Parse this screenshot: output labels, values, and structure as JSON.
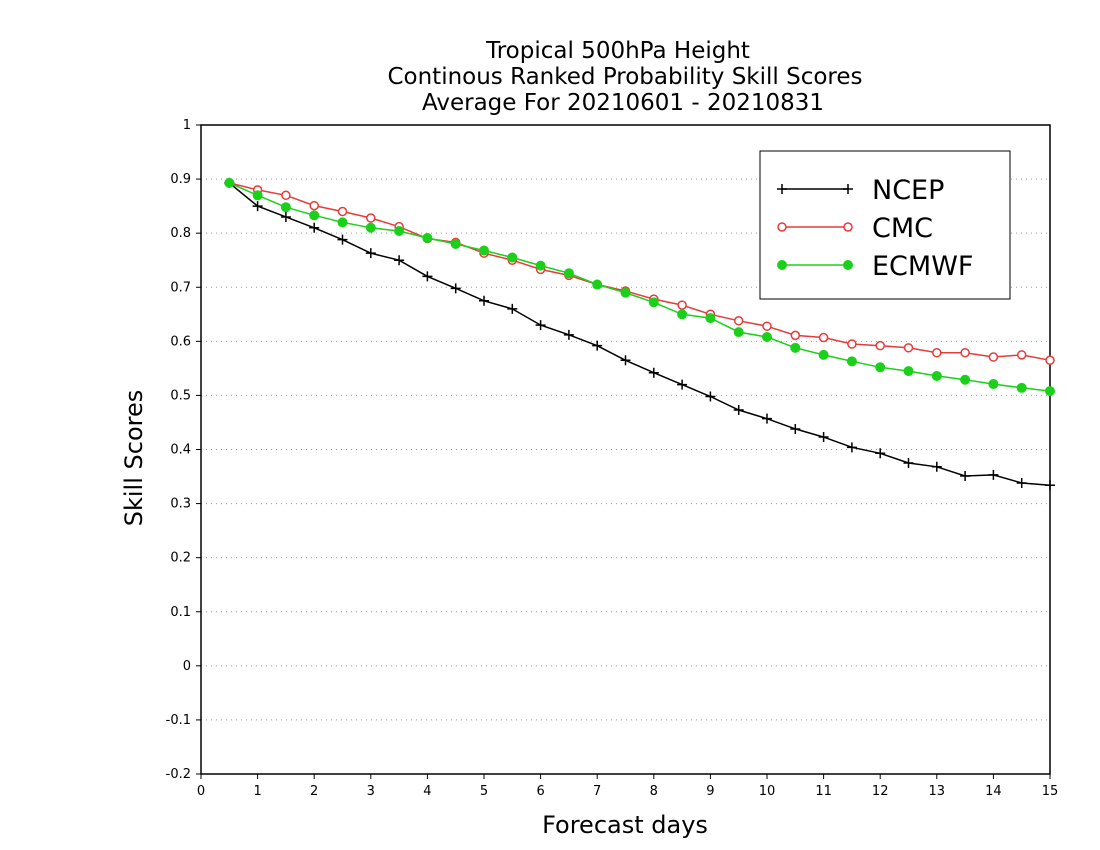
{
  "chart_data": {
    "type": "line",
    "title": "Tropical 500hPa Height",
    "subtitle": "Continous Ranked Probability Skill Scores",
    "period": "Average For 20210601 - 20210831",
    "xlabel": "Forecast days",
    "ylabel": "Skill Scores",
    "xlim": [
      0,
      15
    ],
    "ylim": [
      -0.2,
      1
    ],
    "xticks": [
      0,
      1,
      2,
      3,
      4,
      5,
      6,
      7,
      8,
      9,
      10,
      11,
      12,
      13,
      14,
      15
    ],
    "yticks": [
      -0.2,
      -0.1,
      0,
      0.1,
      0.2,
      0.3,
      0.4,
      0.5,
      0.6,
      0.7,
      0.8,
      0.9,
      1
    ],
    "ytick_labels": [
      "-0.2",
      "-0.1",
      "0",
      "0.1",
      "0.2",
      "0.3",
      "0.4",
      "0.5",
      "0.6",
      "0.7",
      "0.8",
      "0.9",
      "1"
    ],
    "grid": "horizontal-dotted",
    "legend_position": "top-right",
    "x": [
      0.5,
      1,
      1.5,
      2,
      2.5,
      3,
      3.5,
      4,
      4.5,
      5,
      5.5,
      6,
      6.5,
      7,
      7.5,
      8,
      8.5,
      9,
      9.5,
      10,
      10.5,
      11,
      11.5,
      12,
      12.5,
      13,
      13.5,
      14,
      14.5,
      15
    ],
    "series": [
      {
        "name": "NCEP",
        "color": "#000000",
        "marker": "plus",
        "values": [
          0.893,
          0.85,
          0.83,
          0.81,
          0.788,
          0.763,
          0.75,
          0.72,
          0.698,
          0.675,
          0.66,
          0.63,
          0.612,
          0.592,
          0.565,
          0.542,
          0.52,
          0.498,
          0.473,
          0.457,
          0.438,
          0.423,
          0.404,
          0.393,
          0.375,
          0.368,
          0.351,
          0.353,
          0.338,
          0.334
        ]
      },
      {
        "name": "CMC",
        "color": "#e83a3a",
        "marker": "open-circle",
        "values": [
          0.893,
          0.88,
          0.87,
          0.851,
          0.84,
          0.828,
          0.812,
          0.79,
          0.783,
          0.763,
          0.75,
          0.733,
          0.722,
          0.705,
          0.693,
          0.678,
          0.667,
          0.65,
          0.638,
          0.628,
          0.611,
          0.607,
          0.595,
          0.592,
          0.588,
          0.579,
          0.579,
          0.571,
          0.575,
          0.565
        ]
      },
      {
        "name": "ECMWF",
        "color": "#1bd01b",
        "marker": "filled-circle",
        "values": [
          0.893,
          0.87,
          0.848,
          0.833,
          0.82,
          0.81,
          0.804,
          0.791,
          0.78,
          0.768,
          0.755,
          0.74,
          0.726,
          0.705,
          0.69,
          0.672,
          0.65,
          0.643,
          0.617,
          0.608,
          0.588,
          0.575,
          0.563,
          0.552,
          0.545,
          0.536,
          0.529,
          0.521,
          0.514,
          0.508
        ]
      }
    ]
  }
}
